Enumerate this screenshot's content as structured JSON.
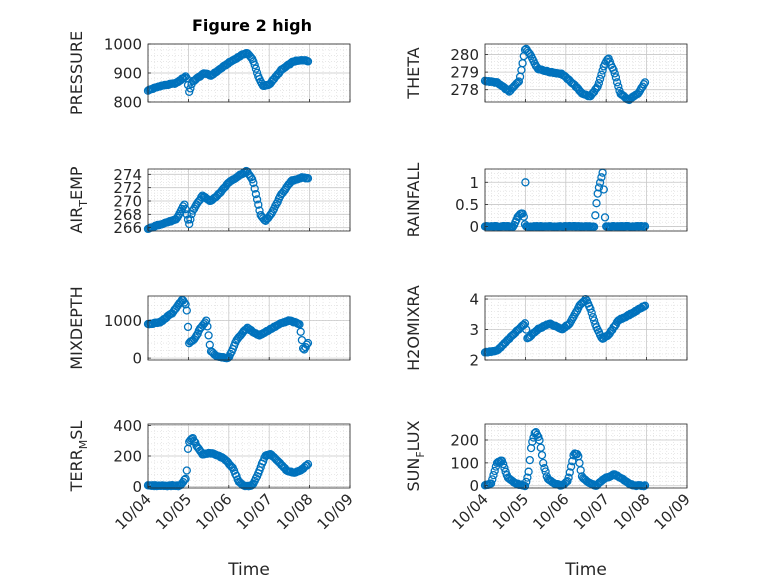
{
  "title": "Figure 2 high",
  "x_tick_labels": [
    "10/04",
    "10/05",
    "10/06",
    "10/07",
    "10/08",
    "10/09"
  ],
  "x_label": "Time",
  "marker_color": "#0072BD",
  "chart_data": [
    {
      "type": "scatter",
      "name": "PRESSURE",
      "ylabel": "PRESSURE",
      "ylim": [
        800,
        1000
      ],
      "yticks": [
        800,
        900,
        1000
      ],
      "ytick_labels": [
        "800",
        "900",
        "1000"
      ],
      "xlim": [
        0,
        5
      ],
      "grid": true,
      "y_key": [
        [
          0,
          840
        ],
        [
          0.3,
          855
        ],
        [
          0.7,
          865
        ],
        [
          0.95,
          890
        ],
        [
          1.02,
          835
        ],
        [
          1.1,
          870
        ],
        [
          1.4,
          900
        ],
        [
          1.55,
          890
        ],
        [
          1.7,
          905
        ],
        [
          2.0,
          935
        ],
        [
          2.3,
          960
        ],
        [
          2.45,
          970
        ],
        [
          2.6,
          945
        ],
        [
          2.75,
          880
        ],
        [
          2.85,
          855
        ],
        [
          3.0,
          860
        ],
        [
          3.3,
          910
        ],
        [
          3.6,
          940
        ],
        [
          3.9,
          945
        ],
        [
          3.98,
          937
        ]
      ]
    },
    {
      "type": "scatter",
      "name": "THETA",
      "ylabel": "THETA",
      "ylim": [
        277.3,
        280.6
      ],
      "yticks": [
        278,
        279,
        280
      ],
      "ytick_labels": [
        "278",
        "279",
        "280"
      ],
      "xlim": [
        0,
        5
      ],
      "grid": true,
      "y_key": [
        [
          0,
          278.5
        ],
        [
          0.3,
          278.4
        ],
        [
          0.6,
          277.9
        ],
        [
          0.85,
          278.5
        ],
        [
          1.0,
          280.4
        ],
        [
          1.12,
          280.0
        ],
        [
          1.3,
          279.2
        ],
        [
          1.6,
          279.0
        ],
        [
          1.9,
          278.9
        ],
        [
          2.2,
          278.3
        ],
        [
          2.4,
          277.8
        ],
        [
          2.6,
          277.6
        ],
        [
          2.8,
          278.2
        ],
        [
          2.95,
          279.4
        ],
        [
          3.05,
          279.8
        ],
        [
          3.2,
          279.0
        ],
        [
          3.35,
          277.8
        ],
        [
          3.55,
          277.4
        ],
        [
          3.8,
          277.8
        ],
        [
          3.98,
          278.5
        ]
      ]
    },
    {
      "type": "scatter",
      "name": "AIR_TEMP",
      "ylabel_main": "AIR",
      "ylabel_sub": "T",
      "ylabel_tail": "EMP",
      "ylim": [
        265.5,
        274.8
      ],
      "yticks": [
        266,
        268,
        270,
        272,
        274
      ],
      "ytick_labels": [
        "266",
        "268",
        "270",
        "272",
        "274"
      ],
      "xlim": [
        0,
        5
      ],
      "grid": true,
      "y_key": [
        [
          0,
          265.8
        ],
        [
          0.3,
          266.5
        ],
        [
          0.7,
          267.2
        ],
        [
          0.9,
          269.5
        ],
        [
          1.02,
          266.5
        ],
        [
          1.1,
          268.5
        ],
        [
          1.35,
          270.8
        ],
        [
          1.55,
          270.0
        ],
        [
          1.75,
          271.0
        ],
        [
          2.0,
          272.8
        ],
        [
          2.3,
          274.0
        ],
        [
          2.45,
          274.5
        ],
        [
          2.6,
          273.0
        ],
        [
          2.78,
          268.0
        ],
        [
          2.9,
          267.0
        ],
        [
          3.05,
          268.0
        ],
        [
          3.3,
          271.0
        ],
        [
          3.55,
          273.0
        ],
        [
          3.8,
          273.5
        ],
        [
          3.98,
          273.4
        ]
      ]
    },
    {
      "type": "scatter",
      "name": "RAINFALL",
      "ylabel": "RAINFALL",
      "ylim": [
        -0.1,
        1.3
      ],
      "yticks": [
        0,
        0.5,
        1
      ],
      "ytick_labels": [
        "0",
        "0.5",
        "1"
      ],
      "xlim": [
        0,
        5
      ],
      "grid": true,
      "y_key": [
        [
          0,
          0
        ],
        [
          0.7,
          0
        ],
        [
          0.8,
          0.2
        ],
        [
          0.85,
          0.25
        ],
        [
          0.9,
          0.3
        ],
        [
          0.95,
          0.28
        ],
        [
          1.0,
          0
        ],
        [
          2.7,
          0
        ],
        [
          2.78,
          0.7
        ],
        [
          2.85,
          1.0
        ],
        [
          2.92,
          1.25
        ],
        [
          2.98,
          0
        ],
        [
          3.98,
          0
        ]
      ],
      "spikes": [
        [
          1.0,
          1.0
        ]
      ]
    },
    {
      "type": "scatter",
      "name": "MIXDEPTH",
      "ylabel": "MIXDEPTH",
      "ylim": [
        -50,
        1650
      ],
      "yticks": [
        0,
        1000
      ],
      "ytick_labels": [
        "0",
        "1000"
      ],
      "xlim": [
        0,
        5
      ],
      "grid": true,
      "y_key": [
        [
          0,
          900
        ],
        [
          0.3,
          950
        ],
        [
          0.6,
          1200
        ],
        [
          0.85,
          1550
        ],
        [
          0.95,
          1400
        ],
        [
          1.02,
          400
        ],
        [
          1.15,
          500
        ],
        [
          1.3,
          800
        ],
        [
          1.45,
          1000
        ],
        [
          1.55,
          200
        ],
        [
          1.7,
          50
        ],
        [
          2.0,
          0
        ],
        [
          2.2,
          500
        ],
        [
          2.45,
          800
        ],
        [
          2.6,
          700
        ],
        [
          2.75,
          600
        ],
        [
          3.0,
          750
        ],
        [
          3.25,
          900
        ],
        [
          3.5,
          1000
        ],
        [
          3.75,
          900
        ],
        [
          3.85,
          200
        ],
        [
          3.98,
          450
        ]
      ]
    },
    {
      "type": "scatter",
      "name": "H2OMIXRA",
      "ylabel": "H2OMIXRA",
      "ylim": [
        2.0,
        4.1
      ],
      "yticks": [
        2,
        3,
        4
      ],
      "ytick_labels": [
        "2",
        "3",
        "4"
      ],
      "xlim": [
        0,
        5
      ],
      "grid": true,
      "y_key": [
        [
          0,
          2.25
        ],
        [
          0.3,
          2.3
        ],
        [
          0.6,
          2.7
        ],
        [
          0.9,
          3.1
        ],
        [
          1.0,
          3.2
        ],
        [
          1.05,
          2.7
        ],
        [
          1.3,
          3.0
        ],
        [
          1.6,
          3.2
        ],
        [
          1.9,
          3.0
        ],
        [
          2.1,
          3.2
        ],
        [
          2.35,
          3.8
        ],
        [
          2.5,
          4.0
        ],
        [
          2.6,
          3.7
        ],
        [
          2.75,
          3.1
        ],
        [
          2.9,
          2.7
        ],
        [
          3.05,
          2.8
        ],
        [
          3.3,
          3.3
        ],
        [
          3.6,
          3.5
        ],
        [
          3.98,
          3.8
        ]
      ]
    },
    {
      "type": "scatter",
      "name": "TERR_MSL",
      "ylabel_main": "TERR",
      "ylabel_sub": "M",
      "ylabel_tail": "SL",
      "ylim": [
        -10,
        410
      ],
      "yticks": [
        0,
        200,
        400
      ],
      "ytick_labels": [
        "0",
        "200",
        "400"
      ],
      "xlim": [
        0,
        5
      ],
      "grid": true,
      "y_key": [
        [
          0,
          5
        ],
        [
          0.8,
          5
        ],
        [
          0.95,
          60
        ],
        [
          1.0,
          290
        ],
        [
          1.1,
          320
        ],
        [
          1.2,
          270
        ],
        [
          1.35,
          210
        ],
        [
          1.55,
          220
        ],
        [
          1.75,
          200
        ],
        [
          1.9,
          180
        ],
        [
          2.1,
          120
        ],
        [
          2.25,
          30
        ],
        [
          2.4,
          0
        ],
        [
          2.6,
          10
        ],
        [
          2.75,
          100
        ],
        [
          2.9,
          200
        ],
        [
          3.05,
          210
        ],
        [
          3.2,
          170
        ],
        [
          3.45,
          100
        ],
        [
          3.65,
          90
        ],
        [
          3.8,
          110
        ],
        [
          3.98,
          150
        ]
      ]
    },
    {
      "type": "scatter",
      "name": "SUN_FLUX",
      "ylabel_main": "SUN",
      "ylabel_sub": "F",
      "ylabel_tail": "LUX",
      "ylim": [
        -10,
        270
      ],
      "yticks": [
        0,
        100,
        200
      ],
      "ytick_labels": [
        "0",
        "100",
        "200"
      ],
      "xlim": [
        0,
        5
      ],
      "grid": true,
      "y_key": [
        [
          0,
          0
        ],
        [
          0.15,
          10
        ],
        [
          0.3,
          100
        ],
        [
          0.42,
          110
        ],
        [
          0.55,
          40
        ],
        [
          0.7,
          15
        ],
        [
          0.85,
          5
        ],
        [
          1.0,
          0
        ],
        [
          1.08,
          60
        ],
        [
          1.15,
          180
        ],
        [
          1.25,
          240
        ],
        [
          1.35,
          200
        ],
        [
          1.45,
          90
        ],
        [
          1.55,
          30
        ],
        [
          1.7,
          10
        ],
        [
          1.9,
          0
        ],
        [
          2.05,
          20
        ],
        [
          2.2,
          140
        ],
        [
          2.3,
          140
        ],
        [
          2.4,
          40
        ],
        [
          2.55,
          15
        ],
        [
          2.75,
          0
        ],
        [
          2.95,
          30
        ],
        [
          3.2,
          50
        ],
        [
          3.4,
          30
        ],
        [
          3.55,
          10
        ],
        [
          3.7,
          0
        ],
        [
          3.98,
          0
        ]
      ]
    }
  ]
}
